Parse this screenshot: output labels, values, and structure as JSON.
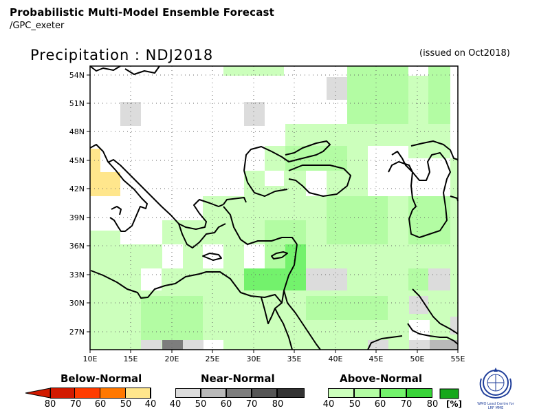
{
  "header": {
    "title": "Probabilistic Multi-Model Ensemble Forecast",
    "subtitle": "/GPC_exeter",
    "variable_title": "Precipitation : NDJ2018",
    "issued": "(issued on Oct2018)"
  },
  "axes": {
    "lat_labels": [
      "54N",
      "51N",
      "48N",
      "45N",
      "42N",
      "39N",
      "36N",
      "33N",
      "30N",
      "27N"
    ],
    "lon_labels": [
      "10E",
      "15E",
      "20E",
      "25E",
      "30E",
      "35E",
      "40E",
      "45E",
      "50E",
      "55E"
    ]
  },
  "legend": {
    "below": {
      "title": "Below-Normal",
      "labels": [
        "80",
        "70",
        "60",
        "50",
        "40"
      ],
      "colors": [
        "#d21a00",
        "#ff3c00",
        "#ff7800",
        "#ffb43c",
        "#ffe68c"
      ]
    },
    "near": {
      "title": "Near-Normal",
      "labels": [
        "40",
        "50",
        "60",
        "70",
        "80"
      ],
      "colors": [
        "#dcdcdc",
        "#b9b9b9",
        "#7d7d7d",
        "#555555",
        "#333333"
      ]
    },
    "above": {
      "title": "Above-Normal",
      "labels": [
        "40",
        "50",
        "60",
        "70",
        "80"
      ],
      "colors": [
        "#ccffbc",
        "#b3fca3",
        "#73f26c",
        "#38d338",
        "#15a81a"
      ],
      "unit": "[%]"
    }
  },
  "logo": {
    "icon": "wmo-emblem-icon",
    "line1": "WMO Lead Centre for",
    "line2": "LRF MME"
  }
}
